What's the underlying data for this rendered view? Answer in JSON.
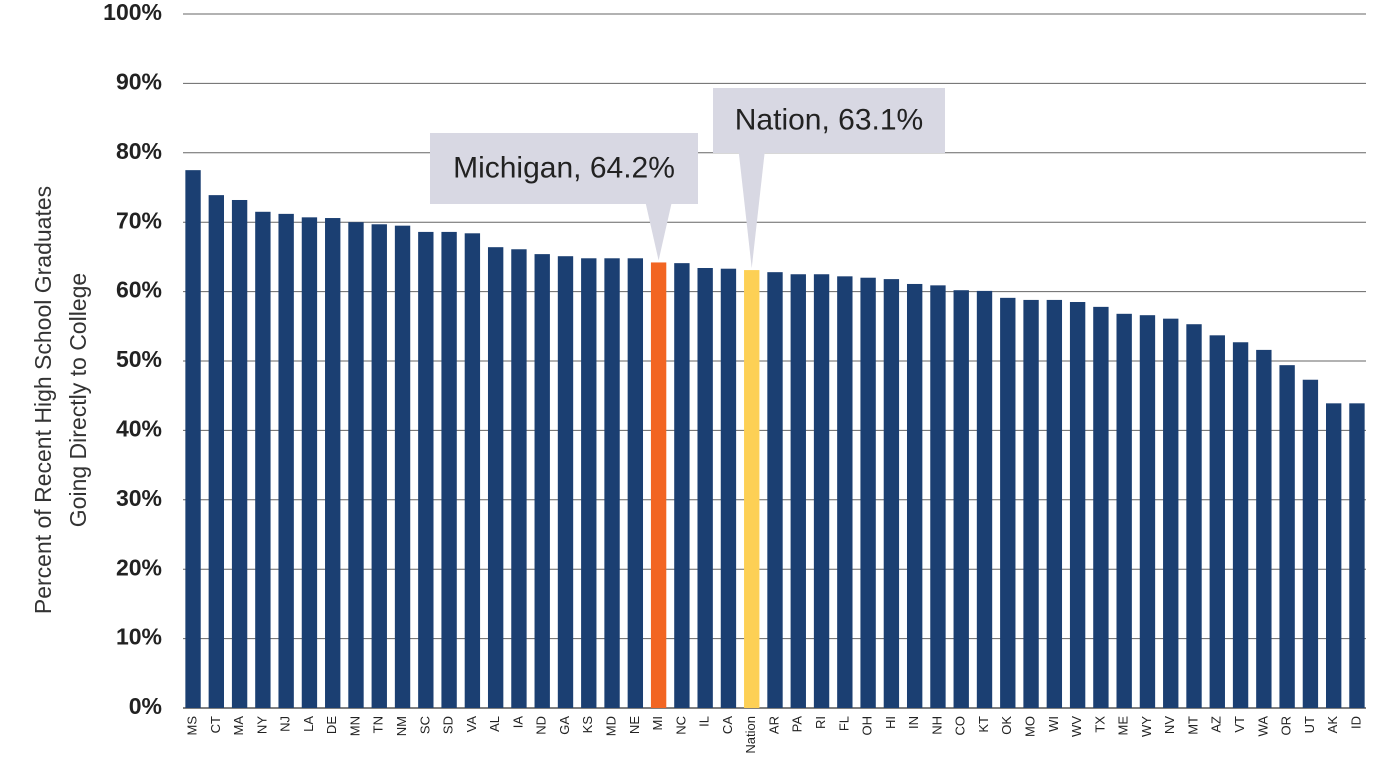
{
  "chart_data": {
    "type": "bar",
    "y_label": [
      "Percent of Recent High School Graduates",
      "Going Directly to College"
    ],
    "categories": [
      "MS",
      "CT",
      "MA",
      "NY",
      "NJ",
      "LA",
      "DE",
      "MN",
      "TN",
      "NM",
      "SC",
      "SD",
      "VA",
      "AL",
      "IA",
      "ND",
      "GA",
      "KS",
      "MD",
      "NE",
      "MI",
      "NC",
      "IL",
      "CA",
      "Nation",
      "AR",
      "PA",
      "RI",
      "FL",
      "OH",
      "HI",
      "IN",
      "NH",
      "CO",
      "KT",
      "OK",
      "MO",
      "WI",
      "WV",
      "TX",
      "ME",
      "WY",
      "NV",
      "MT",
      "AZ",
      "VT",
      "WA",
      "OR",
      "UT",
      "AK",
      "ID"
    ],
    "values": [
      77.5,
      73.9,
      73.2,
      71.5,
      71.2,
      70.7,
      70.6,
      70.0,
      69.7,
      69.5,
      68.6,
      68.6,
      68.4,
      66.4,
      66.1,
      65.4,
      65.1,
      64.8,
      64.8,
      64.8,
      64.2,
      64.1,
      63.4,
      63.3,
      63.1,
      62.8,
      62.5,
      62.5,
      62.2,
      62.0,
      61.8,
      61.1,
      60.9,
      60.2,
      60.1,
      59.1,
      58.8,
      58.8,
      58.5,
      57.8,
      56.8,
      56.6,
      56.1,
      55.3,
      53.7,
      52.7,
      51.6,
      49.4,
      47.3,
      43.9,
      43.9
    ],
    "colors": [
      "#1b3f72",
      "#1b3f72",
      "#1b3f72",
      "#1b3f72",
      "#1b3f72",
      "#1b3f72",
      "#1b3f72",
      "#1b3f72",
      "#1b3f72",
      "#1b3f72",
      "#1b3f72",
      "#1b3f72",
      "#1b3f72",
      "#1b3f72",
      "#1b3f72",
      "#1b3f72",
      "#1b3f72",
      "#1b3f72",
      "#1b3f72",
      "#1b3f72",
      "#f26522",
      "#1b3f72",
      "#1b3f72",
      "#1b3f72",
      "#fdd055",
      "#1b3f72",
      "#1b3f72",
      "#1b3f72",
      "#1b3f72",
      "#1b3f72",
      "#1b3f72",
      "#1b3f72",
      "#1b3f72",
      "#1b3f72",
      "#1b3f72",
      "#1b3f72",
      "#1b3f72",
      "#1b3f72",
      "#1b3f72",
      "#1b3f72",
      "#1b3f72",
      "#1b3f72",
      "#1b3f72",
      "#1b3f72",
      "#1b3f72",
      "#1b3f72",
      "#1b3f72",
      "#1b3f72",
      "#1b3f72",
      "#1b3f72",
      "#1b3f72"
    ],
    "ylim": [
      0,
      100
    ],
    "yticks": [
      {
        "value": 0,
        "label": "0%"
      },
      {
        "value": 10,
        "label": "10%"
      },
      {
        "value": 20,
        "label": "20%"
      },
      {
        "value": 30,
        "label": "30%"
      },
      {
        "value": 40,
        "label": "40%"
      },
      {
        "value": 50,
        "label": "50%"
      },
      {
        "value": 60,
        "label": "60%"
      },
      {
        "value": 70,
        "label": "70%"
      },
      {
        "value": 80,
        "label": "80%"
      },
      {
        "value": 90,
        "label": "90%"
      },
      {
        "value": 100,
        "label": "100%"
      }
    ],
    "grid": true,
    "annotations": [
      "Michigan, 64.2%",
      "Nation, 63.1%"
    ]
  }
}
